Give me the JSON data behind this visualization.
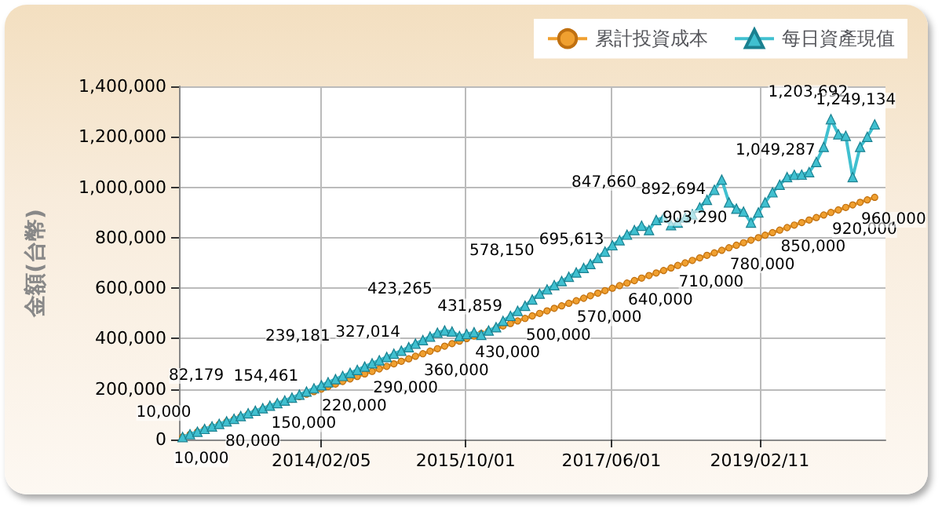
{
  "chart_data": {
    "type": "line",
    "ylabel": "金額(台幣)",
    "x": [
      "2012-07-05",
      "2012-08-05",
      "2012-09-05",
      "2012-10-05",
      "2012-11-05",
      "2012-12-05",
      "2013-01-05",
      "2013-02-05",
      "2013-03-05",
      "2013-04-05",
      "2013-05-05",
      "2013-06-05",
      "2013-07-05",
      "2013-08-05",
      "2013-09-05",
      "2013-10-05",
      "2013-11-05",
      "2013-12-05",
      "2014-01-05",
      "2014-02-05",
      "2014-03-05",
      "2014-04-05",
      "2014-05-05",
      "2014-06-05",
      "2014-07-05",
      "2014-08-05",
      "2014-09-05",
      "2014-10-05",
      "2014-11-05",
      "2014-12-05",
      "2015-01-05",
      "2015-02-05",
      "2015-03-05",
      "2015-04-05",
      "2015-05-05",
      "2015-06-05",
      "2015-07-05",
      "2015-08-05",
      "2015-09-05",
      "2015-10-05",
      "2015-11-05",
      "2015-12-05",
      "2016-01-05",
      "2016-02-05",
      "2016-03-05",
      "2016-04-05",
      "2016-05-05",
      "2016-06-05",
      "2016-07-05",
      "2016-08-05",
      "2016-09-05",
      "2016-10-05",
      "2016-11-05",
      "2016-12-05",
      "2017-01-05",
      "2017-02-05",
      "2017-03-05",
      "2017-04-05",
      "2017-05-05",
      "2017-06-05",
      "2017-07-05",
      "2017-08-05",
      "2017-09-05",
      "2017-10-05",
      "2017-11-05",
      "2017-12-05",
      "2018-01-05",
      "2018-02-05",
      "2018-03-05",
      "2018-04-05",
      "2018-05-05",
      "2018-06-05",
      "2018-07-05",
      "2018-08-05",
      "2018-09-05",
      "2018-10-05",
      "2018-11-05",
      "2018-12-05",
      "2019-01-05",
      "2019-02-05",
      "2019-03-05",
      "2019-04-05",
      "2019-05-05",
      "2019-06-05",
      "2019-07-05",
      "2019-08-05",
      "2019-09-05",
      "2019-10-05",
      "2019-11-05",
      "2019-12-05",
      "2020-01-05",
      "2020-02-05",
      "2020-03-05",
      "2020-04-05",
      "2020-05-05",
      "2020-06-05"
    ],
    "series": [
      {
        "name": "累計投資成本",
        "color": "#f0a030",
        "marker": "circle",
        "values": [
          10000,
          20000,
          30000,
          40000,
          50000,
          60000,
          70000,
          80000,
          90000,
          100000,
          110000,
          120000,
          130000,
          140000,
          150000,
          160000,
          170000,
          180000,
          190000,
          200000,
          210000,
          220000,
          230000,
          240000,
          250000,
          260000,
          270000,
          280000,
          290000,
          300000,
          310000,
          320000,
          330000,
          340000,
          350000,
          360000,
          370000,
          380000,
          390000,
          400000,
          410000,
          420000,
          430000,
          440000,
          450000,
          460000,
          470000,
          480000,
          490000,
          500000,
          510000,
          520000,
          530000,
          540000,
          550000,
          560000,
          570000,
          580000,
          590000,
          600000,
          610000,
          620000,
          630000,
          640000,
          650000,
          660000,
          670000,
          680000,
          690000,
          700000,
          710000,
          720000,
          730000,
          740000,
          750000,
          760000,
          770000,
          780000,
          790000,
          800000,
          810000,
          820000,
          830000,
          840000,
          850000,
          860000,
          870000,
          880000,
          890000,
          900000,
          910000,
          920000,
          930000,
          940000,
          950000,
          960000
        ],
        "value_labels": [
          "10,000",
          null,
          null,
          null,
          null,
          null,
          null,
          "80,000",
          null,
          null,
          null,
          null,
          null,
          null,
          "150,000",
          null,
          null,
          null,
          null,
          null,
          null,
          "220,000",
          null,
          null,
          null,
          null,
          null,
          null,
          "290,000",
          null,
          null,
          null,
          null,
          null,
          null,
          "360,000",
          null,
          null,
          null,
          null,
          null,
          null,
          "430,000",
          null,
          null,
          null,
          null,
          null,
          null,
          "500,000",
          null,
          null,
          null,
          null,
          null,
          null,
          "570,000",
          null,
          null,
          null,
          null,
          null,
          null,
          "640,000",
          null,
          null,
          null,
          null,
          null,
          null,
          "710,000",
          null,
          null,
          null,
          null,
          null,
          null,
          "780,000",
          null,
          null,
          null,
          null,
          null,
          null,
          "850,000",
          null,
          null,
          null,
          null,
          null,
          null,
          "920,000",
          null,
          null,
          null,
          "960,000"
        ]
      },
      {
        "name": "每日資產現值",
        "color": "#40c0d0",
        "marker": "triangle",
        "values": [
          10000,
          21000,
          31000,
          42000,
          52000,
          62000,
          72000,
          82179,
          93000,
          104000,
          114000,
          124000,
          134000,
          144000,
          154461,
          166000,
          178000,
          190000,
          203000,
          215000,
          227000,
          239181,
          252000,
          264000,
          276000,
          289000,
          302000,
          314000,
          327014,
          340000,
          352000,
          366000,
          380000,
          394000,
          408000,
          423265,
          432000,
          428000,
          410000,
          418000,
          425000,
          415000,
          431859,
          445000,
          470000,
          490000,
          510000,
          530000,
          555000,
          578150,
          595000,
          612000,
          628000,
          645000,
          662000,
          680000,
          695613,
          720000,
          745000,
          770000,
          790000,
          812000,
          830000,
          847660,
          830000,
          870000,
          880000,
          850000,
          860000,
          880000,
          892694,
          920000,
          950000,
          990000,
          1030000,
          940000,
          915000,
          903290,
          860000,
          900000,
          940000,
          980000,
          1010000,
          1040000,
          1049287,
          1050000,
          1060000,
          1100000,
          1160000,
          1270000,
          1210000,
          1203692,
          1040000,
          1160000,
          1200000,
          1249134
        ],
        "value_labels": [
          "10,000",
          null,
          null,
          null,
          null,
          null,
          null,
          "82,179",
          null,
          null,
          null,
          null,
          null,
          null,
          "154,461",
          null,
          null,
          null,
          null,
          null,
          null,
          "239,181",
          null,
          null,
          null,
          null,
          null,
          null,
          "327,014",
          null,
          null,
          null,
          null,
          null,
          null,
          "423,265",
          null,
          null,
          null,
          null,
          null,
          null,
          "431,859",
          null,
          null,
          null,
          null,
          null,
          null,
          "578,150",
          null,
          null,
          null,
          null,
          null,
          null,
          "695,613",
          null,
          null,
          null,
          null,
          null,
          null,
          "847,660",
          null,
          null,
          null,
          null,
          null,
          null,
          "892,694",
          null,
          null,
          null,
          null,
          null,
          null,
          "903,290",
          null,
          null,
          null,
          null,
          null,
          null,
          "1,049,287",
          null,
          null,
          null,
          null,
          null,
          null,
          "1,203,692",
          null,
          null,
          null,
          "1,249,134"
        ]
      }
    ],
    "xlim": [
      "2012-06-20",
      "2020-07-20"
    ],
    "xticks": [
      {
        "value": "2014-02-05",
        "label": "2014/02/05"
      },
      {
        "value": "2015-10-01",
        "label": "2015/10/01"
      },
      {
        "value": "2017-06-01",
        "label": "2017/06/01"
      },
      {
        "value": "2019-02-11",
        "label": "2019/02/11"
      }
    ],
    "ylim": [
      0,
      1400000
    ],
    "yticks": [
      {
        "value": 0,
        "label": "0"
      },
      {
        "value": 200000,
        "label": "200,000"
      },
      {
        "value": 400000,
        "label": "400,000"
      },
      {
        "value": 600000,
        "label": "600,000"
      },
      {
        "value": 800000,
        "label": "800,000"
      },
      {
        "value": 1000000,
        "label": "1,000,000"
      },
      {
        "value": 1200000,
        "label": "1,200,000"
      },
      {
        "value": 1400000,
        "label": "1,400,000"
      }
    ],
    "grid": true,
    "legend": "top right"
  }
}
